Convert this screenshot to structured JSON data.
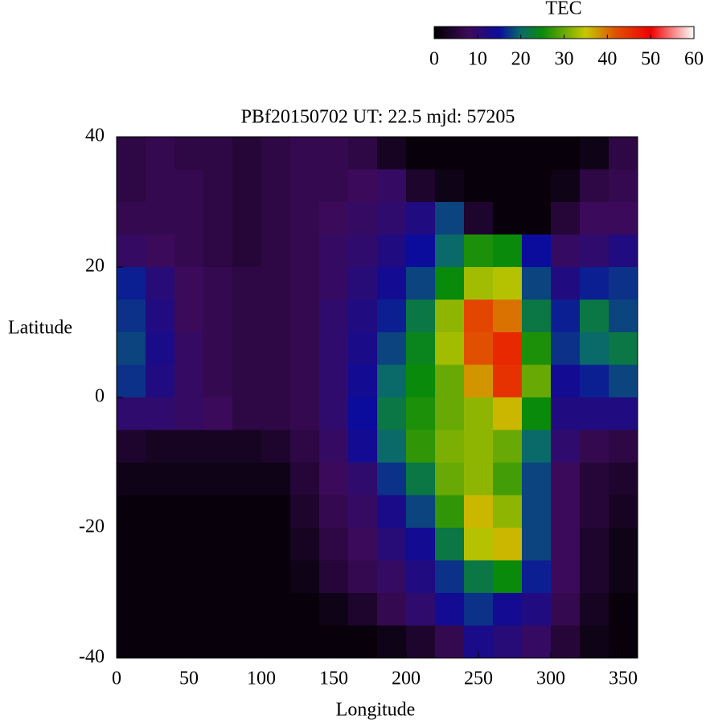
{
  "chart_data": {
    "type": "heatmap",
    "title": "PBf20150702  UT: 22.5  mjd: 57205",
    "xlabel": "Longitude",
    "ylabel": "Latitude",
    "colorbar_label": "TEC",
    "xlim": [
      0,
      360
    ],
    "xticks": [
      0,
      50,
      100,
      150,
      200,
      250,
      300,
      350
    ],
    "ylim": [
      -40,
      40
    ],
    "yticks": [
      -40,
      -20,
      0,
      20,
      40
    ],
    "zlim": [
      0,
      60
    ],
    "zticks": [
      0,
      10,
      20,
      30,
      40,
      50,
      60
    ],
    "colormap": [
      {
        "value": 0,
        "color": "#000000"
      },
      {
        "value": 8,
        "color": "#3c0a5a"
      },
      {
        "value": 15,
        "color": "#0c0c9c"
      },
      {
        "value": 20,
        "color": "#0a6a6a"
      },
      {
        "value": 25,
        "color": "#0a8a0a"
      },
      {
        "value": 35,
        "color": "#c8c800"
      },
      {
        "value": 42,
        "color": "#e05000"
      },
      {
        "value": 50,
        "color": "#f00000"
      },
      {
        "value": 60,
        "color": "#ffffff"
      }
    ],
    "xbins": [
      0,
      20,
      40,
      60,
      80,
      100,
      120,
      140,
      160,
      180,
      200,
      220,
      240,
      260,
      280,
      300,
      320,
      340,
      360
    ],
    "ybins": [
      40,
      35,
      30,
      25,
      20,
      15,
      10,
      5,
      0,
      -5,
      -10,
      -15,
      -20,
      -25,
      -30,
      -35,
      -40
    ],
    "values": [
      [
        6,
        7,
        6,
        6,
        5,
        6,
        7,
        7,
        6,
        3,
        1,
        1,
        1,
        1,
        1,
        1,
        2,
        6
      ],
      [
        6,
        7,
        7,
        6,
        5,
        6,
        7,
        7,
        8,
        9,
        4,
        2,
        1,
        1,
        1,
        2,
        6,
        7
      ],
      [
        7,
        7,
        7,
        6,
        5,
        6,
        7,
        8,
        9,
        10,
        12,
        18,
        4,
        1,
        1,
        5,
        8,
        8
      ],
      [
        9,
        8,
        7,
        6,
        5,
        6,
        7,
        9,
        10,
        12,
        15,
        20,
        26,
        25,
        15,
        9,
        10,
        12
      ],
      [
        16,
        11,
        8,
        7,
        6,
        6,
        7,
        9,
        11,
        14,
        18,
        25,
        33,
        34,
        18,
        12,
        16,
        17
      ],
      [
        17,
        12,
        8,
        7,
        6,
        6,
        7,
        10,
        12,
        16,
        22,
        32,
        43,
        40,
        22,
        16,
        22,
        18
      ],
      [
        18,
        13,
        9,
        7,
        6,
        6,
        7,
        10,
        13,
        18,
        24,
        33,
        42,
        46,
        26,
        17,
        20,
        22
      ],
      [
        17,
        12,
        9,
        7,
        6,
        6,
        7,
        10,
        14,
        20,
        25,
        30,
        38,
        45,
        30,
        14,
        16,
        18
      ],
      [
        10,
        10,
        9,
        8,
        6,
        6,
        7,
        10,
        15,
        22,
        26,
        30,
        32,
        36,
        25,
        12,
        12,
        12
      ],
      [
        4,
        3,
        3,
        3,
        3,
        4,
        6,
        9,
        14,
        20,
        27,
        31,
        32,
        30,
        20,
        10,
        7,
        6
      ],
      [
        2,
        2,
        2,
        2,
        2,
        2,
        5,
        8,
        10,
        17,
        22,
        30,
        32,
        28,
        18,
        8,
        5,
        4
      ],
      [
        1,
        1,
        1,
        1,
        1,
        1,
        4,
        7,
        9,
        13,
        18,
        27,
        36,
        32,
        18,
        8,
        5,
        3
      ],
      [
        1,
        1,
        1,
        1,
        1,
        1,
        3,
        6,
        8,
        11,
        14,
        22,
        34,
        36,
        18,
        8,
        4,
        2
      ],
      [
        1,
        1,
        1,
        1,
        1,
        1,
        2,
        5,
        7,
        9,
        12,
        17,
        22,
        25,
        16,
        8,
        4,
        2
      ],
      [
        1,
        1,
        1,
        1,
        1,
        1,
        1,
        2,
        4,
        7,
        10,
        14,
        17,
        14,
        12,
        7,
        3,
        1
      ],
      [
        1,
        1,
        1,
        1,
        1,
        1,
        1,
        1,
        1,
        2,
        4,
        7,
        13,
        11,
        9,
        5,
        2,
        1
      ]
    ]
  }
}
